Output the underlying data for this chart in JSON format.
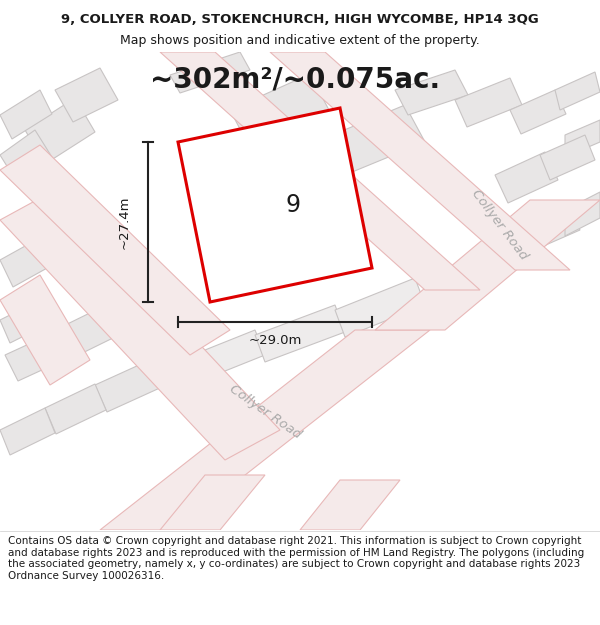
{
  "title_line1": "9, COLLYER ROAD, STOKENCHURCH, HIGH WYCOMBE, HP14 3QG",
  "title_line2": "Map shows position and indicative extent of the property.",
  "area_text": "~302m²/~0.075ac.",
  "dim_width": "~29.0m",
  "dim_height": "~27.4m",
  "property_number": "9",
  "footer_text": "Contains OS data © Crown copyright and database right 2021. This information is subject to Crown copyright and database rights 2023 and is reproduced with the permission of HM Land Registry. The polygons (including the associated geometry, namely x, y co-ordinates) are subject to Crown copyright and database rights 2023 Ordnance Survey 100026316.",
  "map_bg": "#f7f5f5",
  "building_edge": "#c8c4c4",
  "building_fill": "#e8e6e6",
  "road_line": "#e8b8b8",
  "road_fill": "#f5eaea",
  "red_outline": "#dd0000",
  "prop_fill": "#f0ecea",
  "text_color": "#1a1a1a",
  "dim_line_color": "#222222",
  "road_label_color": "#aaaaaa",
  "footer_fontsize": 7.5,
  "title_fontsize": 9.5,
  "subtitle_fontsize": 9.0,
  "area_fontsize": 20,
  "dim_fontsize": 9.5,
  "number_fontsize": 17,
  "road_label_fontsize": 9.5
}
